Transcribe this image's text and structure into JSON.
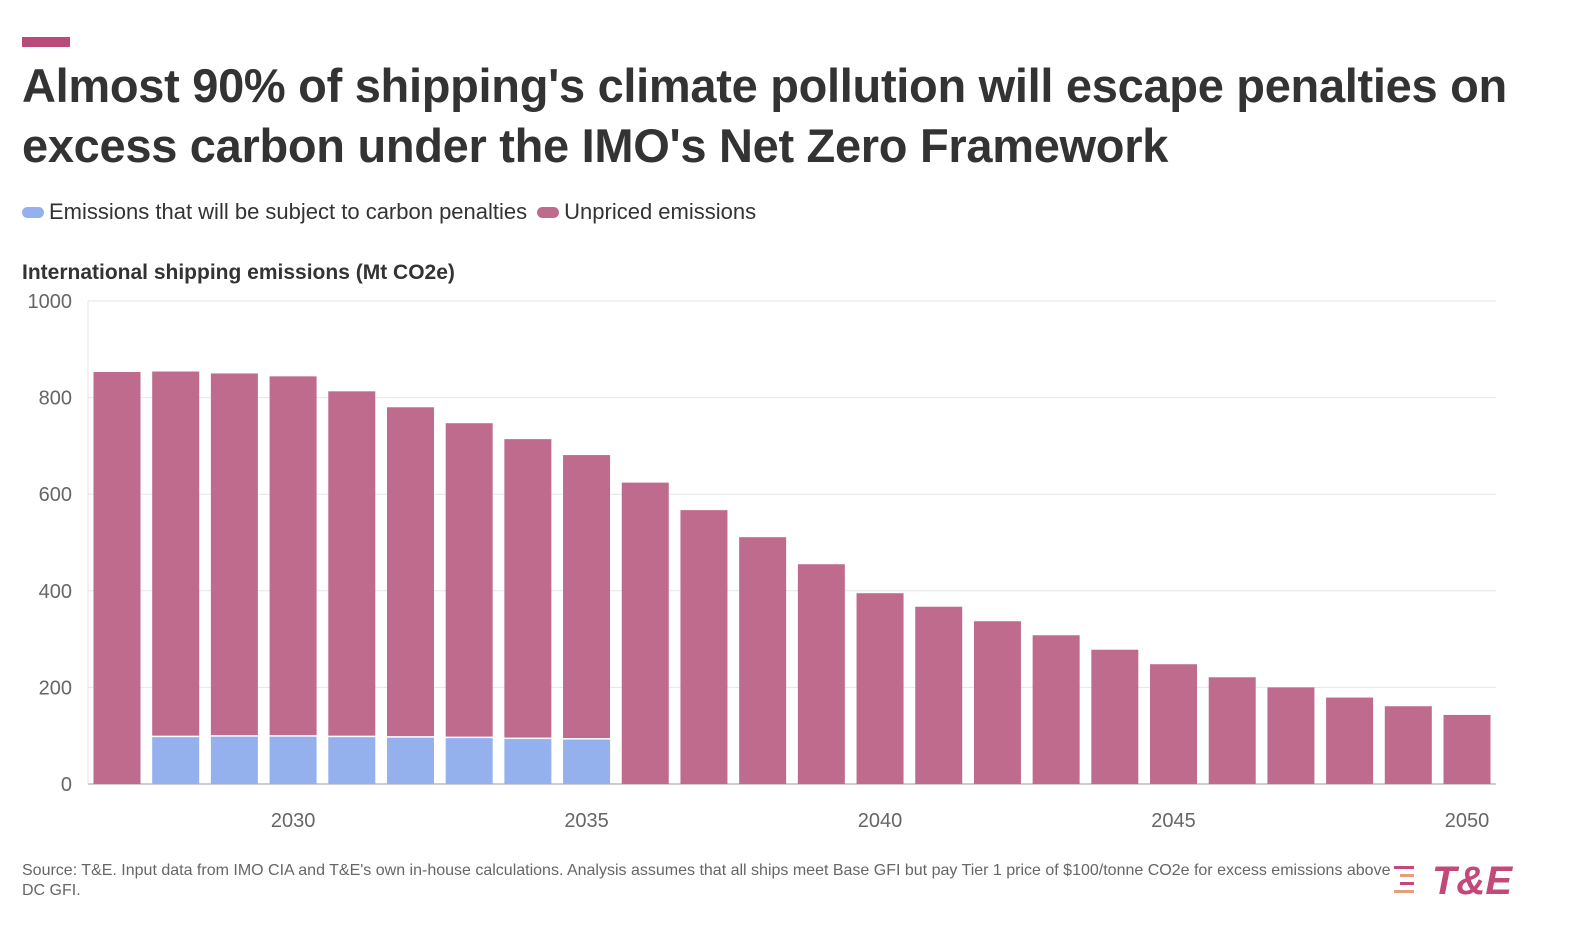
{
  "title": "Almost 90% of shipping's climate pollution will escape penalties on excess carbon under the IMO's Net Zero Framework",
  "legend": [
    {
      "label": "Emissions that will be subject to carbon penalties",
      "color": "#94b1ee"
    },
    {
      "label": "Unpriced emissions",
      "color": "#bf6b8d"
    }
  ],
  "source": "Source: T&E. Input data from IMO CIA and T&E's own in-house calculations. Analysis assumes that all ships meet Base GFI but pay Tier 1 price of $100/tonne CO2e for excess emissions above DC GFI.",
  "logo": {
    "text": "T&E",
    "color": "#c2497a",
    "accent": "#e5a07a"
  },
  "colors": {
    "accent": "#b94a7a",
    "priced": "#94b1ee",
    "unpriced": "#bf6b8d",
    "grid": "#e6e6e6"
  },
  "chart_data": {
    "type": "bar",
    "stacked": true,
    "ylabel": "International shipping emissions (Mt CO2e)",
    "ylim": [
      0,
      1000
    ],
    "yticks": [
      0,
      200,
      400,
      600,
      800,
      1000
    ],
    "xticks": [
      2030,
      2035,
      2040,
      2045,
      2050
    ],
    "categories": [
      2027,
      2028,
      2029,
      2030,
      2031,
      2032,
      2033,
      2034,
      2035,
      2036,
      2037,
      2038,
      2039,
      2040,
      2041,
      2042,
      2043,
      2044,
      2045,
      2046,
      2047,
      2048,
      2049,
      2050
    ],
    "series": [
      {
        "name": "Emissions that will be subject to carbon penalties",
        "values": [
          0,
          97,
          98,
          98,
          97,
          96,
          95,
          93,
          92,
          0,
          0,
          0,
          0,
          0,
          0,
          0,
          0,
          0,
          0,
          0,
          0,
          0,
          0,
          0
        ]
      },
      {
        "name": "Unpriced emissions",
        "values": [
          853,
          757,
          752,
          746,
          716,
          684,
          652,
          621,
          589,
          624,
          567,
          511,
          455,
          395,
          367,
          337,
          308,
          278,
          248,
          221,
          200,
          179,
          161,
          143
        ]
      }
    ],
    "grid": true
  }
}
